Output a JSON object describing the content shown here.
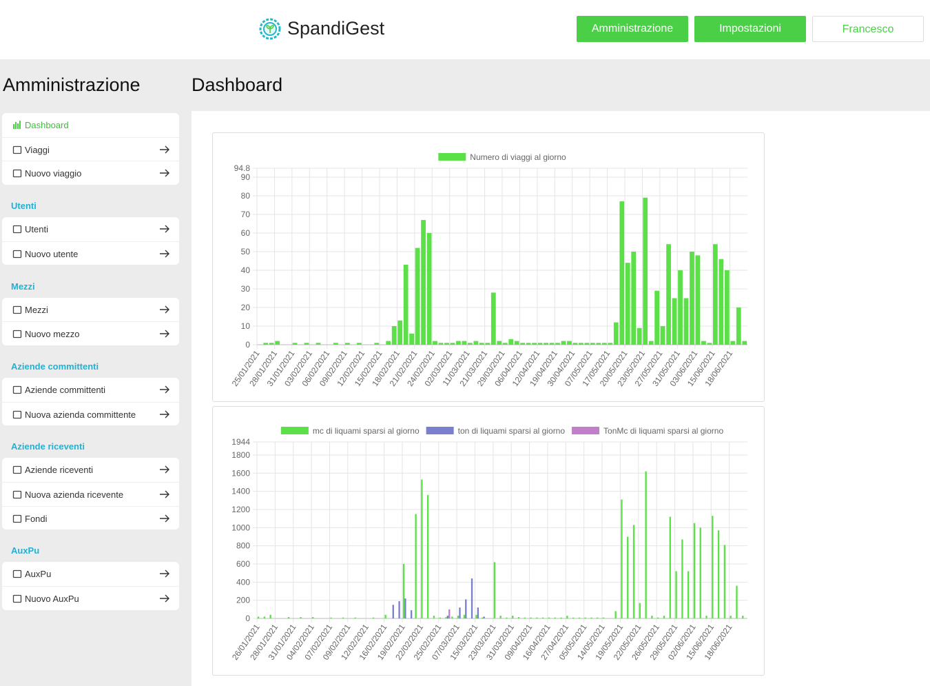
{
  "header": {
    "brand": "SpandiGest",
    "buttons": [
      "Amministrazione",
      "Impostazioni",
      "Francesco"
    ]
  },
  "sidebar": {
    "title": "Amministrazione",
    "sections": [
      {
        "items": [
          "Dashboard",
          "Viaggi",
          "Nuovo viaggio"
        ]
      },
      {
        "heading": "Utenti",
        "items": [
          "Utenti",
          "Nuovo utente"
        ]
      },
      {
        "heading": "Mezzi",
        "items": [
          "Mezzi",
          "Nuovo mezzo"
        ]
      },
      {
        "heading": "Aziende committenti",
        "items": [
          "Aziende committenti",
          "Nuova azienda committente"
        ]
      },
      {
        "heading": "Aziende riceventi",
        "items": [
          "Aziende riceventi",
          "Nuova azienda ricevente",
          "Fondi"
        ]
      },
      {
        "heading": "AuxPu",
        "items": [
          "AuxPu",
          "Nuovo AuxPu"
        ]
      }
    ]
  },
  "main": {
    "title": "Dashboard"
  },
  "chart_data": [
    {
      "type": "bar",
      "grid": true,
      "legend": "top",
      "categories": [
        "25/01/2021",
        null,
        null,
        "28/01/2021",
        null,
        null,
        "31/01/2021",
        null,
        null,
        "03/02/2021",
        null,
        null,
        "06/02/2021",
        null,
        null,
        "09/02/2021",
        null,
        null,
        "12/02/2021",
        null,
        null,
        "15/02/2021",
        null,
        null,
        "18/02/2021",
        null,
        null,
        "21/02/2021",
        null,
        null,
        "24/02/2021",
        null,
        null,
        "02/03/2021",
        null,
        null,
        "11/03/2021",
        null,
        null,
        "21/03/2021",
        null,
        null,
        "29/03/2021",
        null,
        null,
        "06/04/2021",
        null,
        null,
        "12/04/2021",
        null,
        null,
        "19/04/2021",
        null,
        null,
        "30/04/2021",
        null,
        null,
        "07/05/2021",
        null,
        null,
        "17/05/2021",
        null,
        null,
        "20/05/2021",
        null,
        null,
        "23/05/2021",
        null,
        null,
        "27/05/2021",
        null,
        null,
        "31/05/2021",
        null,
        null,
        "03/06/2021",
        null,
        null,
        "15/06/2021",
        null,
        null,
        "18/06/2021",
        null,
        null
      ],
      "series": [
        {
          "name": "Numero di viaggi al giorno",
          "color": "#5be048",
          "values": [
            0,
            1,
            1,
            2,
            0,
            0,
            1,
            0,
            1,
            0,
            1,
            0,
            0,
            1,
            0,
            1,
            0,
            1,
            0,
            0,
            1,
            0,
            2,
            10,
            13,
            43,
            6,
            52,
            67,
            60,
            2,
            1,
            1,
            1,
            2,
            2,
            1,
            2,
            1,
            1,
            28,
            2,
            1,
            3,
            2,
            1,
            1,
            1,
            1,
            1,
            1,
            1,
            2,
            2,
            1,
            1,
            1,
            1,
            1,
            1,
            1,
            12,
            77,
            44,
            50,
            9,
            79,
            2,
            29,
            10,
            54,
            25,
            40,
            25,
            50,
            48,
            2,
            1,
            54,
            46,
            40,
            2,
            20,
            2
          ]
        }
      ],
      "ylim": [
        0,
        94.8
      ],
      "yticks": [
        0,
        10,
        20,
        30,
        40,
        50,
        60,
        70,
        80,
        90,
        94.8
      ]
    },
    {
      "type": "bar",
      "grid": true,
      "legend": "top",
      "categories": [
        "26/01/2021",
        null,
        null,
        "28/01/2021",
        null,
        null,
        "31/01/2021",
        null,
        null,
        "04/02/2021",
        null,
        null,
        "07/02/2021",
        null,
        null,
        "09/02/2021",
        null,
        null,
        "12/02/2021",
        null,
        null,
        "16/02/2021",
        null,
        null,
        "19/02/2021",
        null,
        null,
        "22/02/2021",
        null,
        null,
        "25/02/2021",
        null,
        null,
        "07/03/2021",
        null,
        null,
        "15/03/2021",
        null,
        null,
        "23/03/2021",
        null,
        null,
        "31/03/2021",
        null,
        null,
        "09/04/2021",
        null,
        null,
        "16/04/2021",
        null,
        null,
        "27/04/2021",
        null,
        null,
        "05/05/2021",
        null,
        null,
        "14/05/2021",
        null,
        null,
        "19/05/2021",
        null,
        null,
        "22/05/2021",
        null,
        null,
        "26/05/2021",
        null,
        null,
        "29/05/2021",
        null,
        null,
        "02/06/2021",
        null,
        null,
        "15/06/2021",
        null,
        null,
        "18/06/2021",
        null,
        null
      ],
      "series": [
        {
          "name": "mc di liquami sparsi al giorno",
          "color": "#5be048",
          "values": [
            20,
            20,
            40,
            0,
            0,
            15,
            0,
            15,
            0,
            15,
            0,
            0,
            10,
            0,
            10,
            0,
            10,
            0,
            0,
            10,
            0,
            40,
            0,
            0,
            600,
            0,
            1150,
            1530,
            1360,
            30,
            10,
            15,
            20,
            30,
            40,
            0,
            40,
            10,
            0,
            620,
            30,
            10,
            30,
            15,
            10,
            10,
            10,
            10,
            10,
            10,
            10,
            30,
            10,
            10,
            10,
            10,
            10,
            10,
            0,
            80,
            1310,
            900,
            1030,
            170,
            1620,
            30,
            10,
            30,
            1120,
            520,
            870,
            520,
            1050,
            1000,
            30,
            1130,
            970,
            810,
            30,
            360,
            30
          ]
        },
        {
          "name": "ton di liquami sparsi al giorno",
          "color": "#7b7fcf",
          "values": [
            0,
            0,
            0,
            0,
            0,
            0,
            0,
            0,
            0,
            0,
            0,
            0,
            0,
            0,
            0,
            0,
            0,
            0,
            0,
            0,
            0,
            0,
            150,
            190,
            220,
            90,
            0,
            0,
            0,
            0,
            0,
            30,
            0,
            120,
            210,
            440,
            120,
            20,
            0,
            0,
            0,
            0,
            0,
            0,
            0,
            0,
            0,
            0,
            0,
            0,
            0,
            0,
            0,
            0,
            0,
            0,
            0,
            0,
            0,
            0,
            0,
            0,
            0,
            0,
            0,
            0,
            0,
            0,
            0,
            0,
            0,
            0,
            0,
            0,
            0,
            0,
            0,
            0,
            0,
            0,
            0
          ]
        },
        {
          "name": "TonMc di liquami sparsi al giorno",
          "color": "#c27fc9",
          "values": [
            0,
            0,
            0,
            0,
            0,
            0,
            0,
            0,
            0,
            0,
            0,
            0,
            0,
            0,
            0,
            0,
            0,
            0,
            0,
            0,
            0,
            0,
            0,
            0,
            0,
            0,
            0,
            0,
            0,
            0,
            0,
            100,
            0,
            0,
            0,
            0,
            0,
            0,
            0,
            0,
            0,
            0,
            0,
            0,
            0,
            0,
            0,
            0,
            0,
            0,
            0,
            0,
            0,
            0,
            0,
            0,
            0,
            0,
            0,
            0,
            0,
            0,
            0,
            0,
            0,
            0,
            0,
            0,
            0,
            0,
            0,
            0,
            0,
            0,
            0,
            0,
            0,
            0,
            0,
            0,
            0
          ]
        }
      ],
      "ylim": [
        0,
        1944
      ],
      "yticks": [
        0,
        200,
        400,
        600,
        800,
        1000,
        1200,
        1400,
        1600,
        1800,
        1944
      ]
    }
  ]
}
